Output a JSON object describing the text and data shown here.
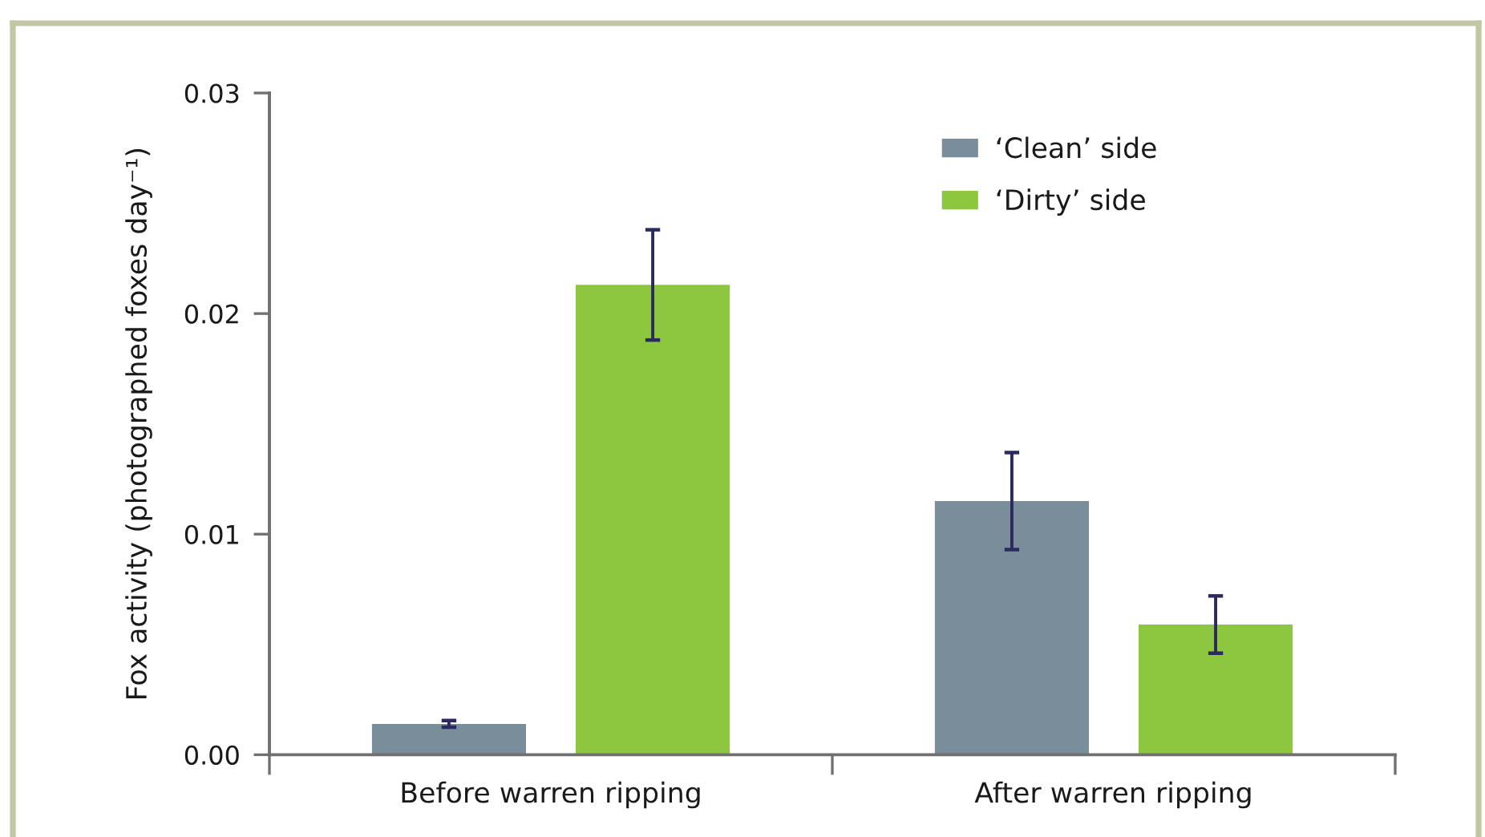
{
  "chart_data": {
    "type": "bar",
    "ylabel": "Fox activity (photographed foxes day⁻¹)",
    "categories": [
      "Before warren ripping",
      "After warren ripping"
    ],
    "series": [
      {
        "name": "‘Clean’ side",
        "color": "#798e9a",
        "values": [
          0.0014,
          0.0115
        ],
        "errors": [
          0.00015,
          0.0022
        ]
      },
      {
        "name": "‘Dirty’ side",
        "color": "#8dc63f",
        "values": [
          0.0213,
          0.0059
        ],
        "errors": [
          0.0025,
          0.0013
        ]
      }
    ],
    "ylim": [
      0,
      0.03
    ],
    "yticks": [
      {
        "value": 0,
        "label": "0.00"
      },
      0.01,
      0.02,
      0.03
    ],
    "legend": "top right"
  }
}
